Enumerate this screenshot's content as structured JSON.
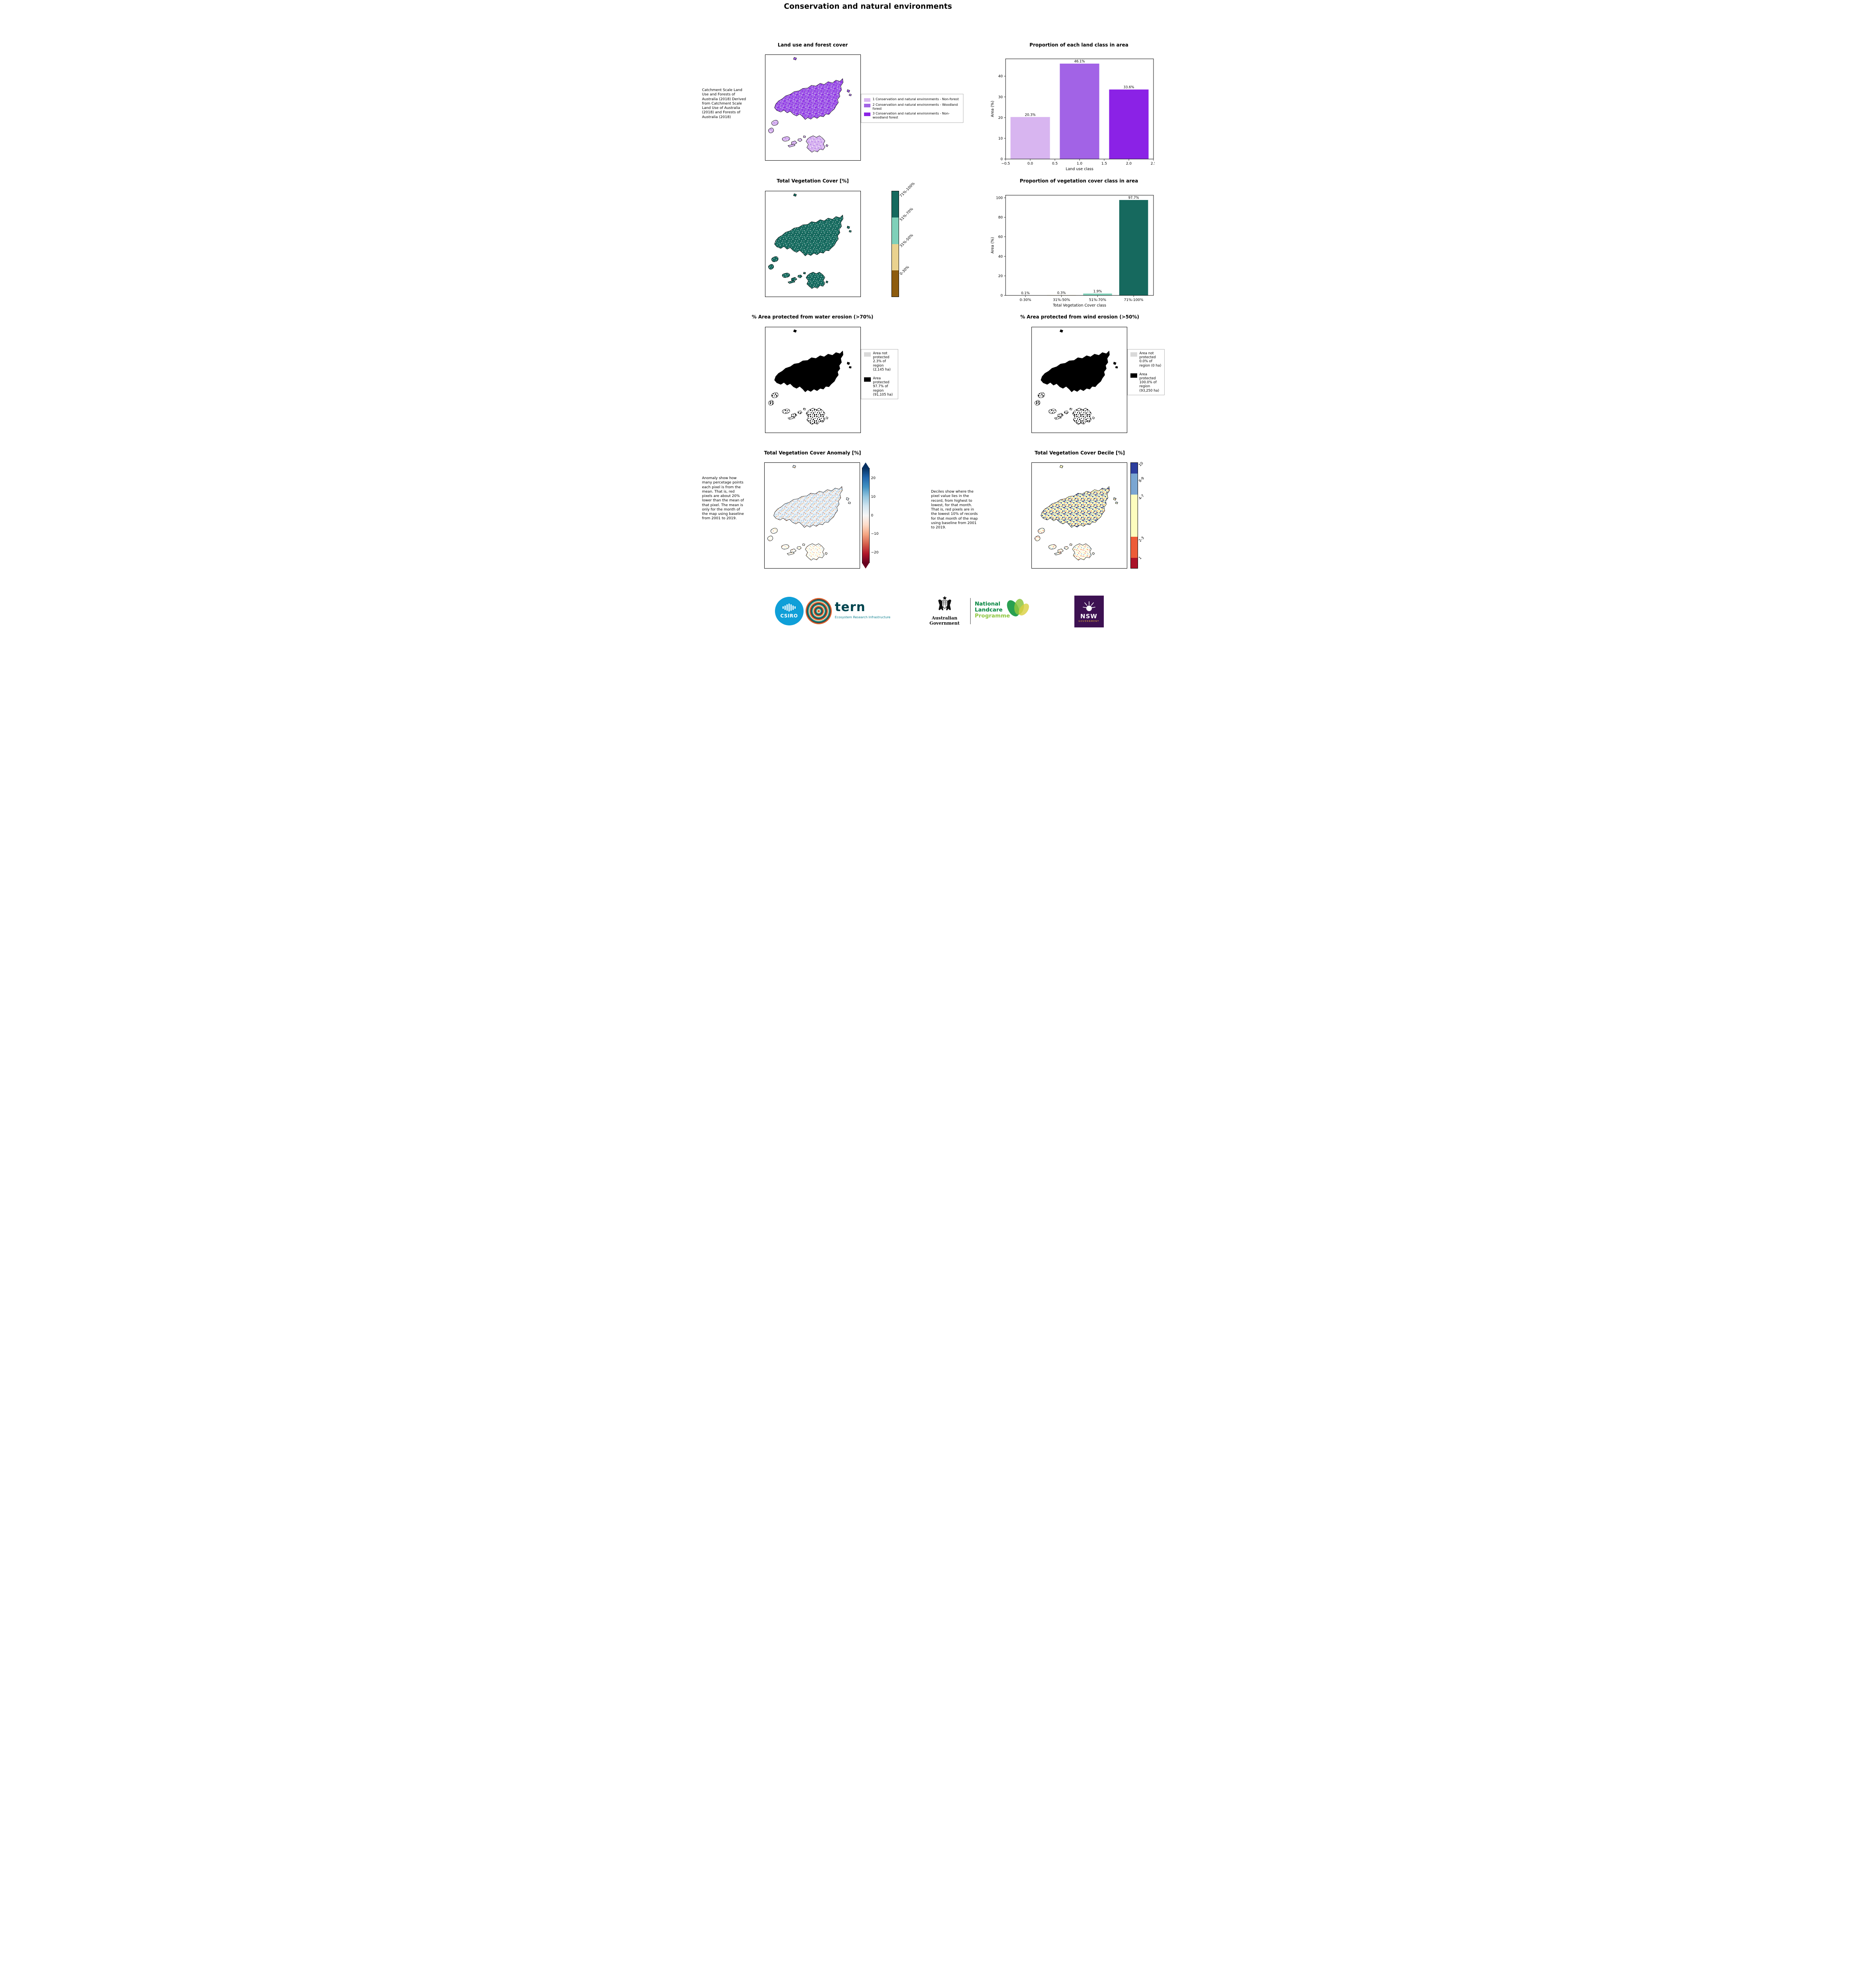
{
  "page": {
    "title": "Conservation and natural environments"
  },
  "landuse": {
    "map_title": "Land use and forest cover",
    "note": " Catchment Scale Land Use and Forests of Australia (2018) Derived from Catchment Scale Land Use of Australia (2018) and Forests of Australia (2018)",
    "legend": {
      "items": [
        {
          "label": "1 Conservation and natural environments - Non-forest",
          "color": "#d8b5f0"
        },
        {
          "label": "2 Conservation and natural environments - Woodland forest",
          "color": "#a263e6"
        },
        {
          "label": "3 Conservation and natural environments - Non-woodland forest",
          "color": "#8b22e6"
        }
      ]
    }
  },
  "vegcover": {
    "map_title": "Total Vegetation Cover [%]",
    "colorbar": {
      "segments": [
        {
          "label": "71%-100%",
          "color": "#16695e"
        },
        {
          "label": "51%-70%",
          "color": "#7fd0b9"
        },
        {
          "label": "31%-50%",
          "color": "#ead28f"
        },
        {
          "label": "0-30%",
          "color": "#8d5c0f"
        }
      ]
    }
  },
  "water_erosion": {
    "title": "% Area protected from water erosion (>70%)",
    "legend": [
      {
        "label": "Area not protected 2.3% of region (2,145 ha)",
        "color": "#d9d9d9"
      },
      {
        "label": "Area protected 97.7% of region (91,105 ha)",
        "color": "#000000"
      }
    ]
  },
  "wind_erosion": {
    "title": "% Area protected from wind erosion (>50%)",
    "legend": [
      {
        "label": "Area not protected 0.0% of region (0 ha)",
        "color": "#d9d9d9"
      },
      {
        "label": "Area protected 100.0% of region (93,250 ha)",
        "color": "#000000"
      }
    ]
  },
  "anomaly": {
    "title": "Total Vegetation Cover Anomaly [%]",
    "note": "Anomaly show how many percetage points each pixel is from the mean. That is, red pixels are about 20% lower than the mean of that pixel. The mean is only for the month of the map using baseline from 2001 to 2019.",
    "colorbar_ticks": [
      {
        "label": "20"
      },
      {
        "label": "10"
      },
      {
        "label": "0"
      },
      {
        "label": "−10"
      },
      {
        "label": "−20"
      }
    ]
  },
  "decile": {
    "title": "Total Vegetation Cover Decile [%]",
    "note": "Deciles show where the pixel value lies in the record, from highest to lowest, for that month. That is, red pixels are in the lowest 10% of records for that month of the map using baseline from 2001 to 2019.",
    "colorbar": {
      "segments": [
        {
          "label": "10",
          "color": "#2d3f9e"
        },
        {
          "label": "8-9",
          "color": "#7aa6d2"
        },
        {
          "label": "4-7",
          "color": "#fdfdbe"
        },
        {
          "label": "2-3",
          "color": "#ec5c38"
        },
        {
          "label": "1",
          "color": "#aa1328"
        }
      ]
    }
  },
  "chart_data": [
    {
      "type": "bar",
      "title": "Proportion of each land class in area",
      "xlabel": "Land use class",
      "ylabel": "Area (%)",
      "x": [
        0,
        1,
        2
      ],
      "values": [
        20.3,
        46.1,
        33.6
      ],
      "value_labels": [
        "20.3%",
        "46.1%",
        "33.6%"
      ],
      "colors": [
        "#d8b5f0",
        "#a263e6",
        "#8b22e6"
      ],
      "bar_width": 0.8,
      "xlim": [
        -0.5,
        2.5
      ],
      "ylim": [
        0,
        48.4
      ],
      "xticks": [
        -0.5,
        0.0,
        0.5,
        1.0,
        1.5,
        2.0,
        2.5
      ],
      "xtick_labels": [
        "−0.5",
        "0.0",
        "0.5",
        "1.0",
        "1.5",
        "2.0",
        "2.5"
      ],
      "yticks": [
        0,
        10,
        20,
        30,
        40
      ],
      "grid": false,
      "legend_position": "none"
    },
    {
      "type": "bar",
      "title": "Proportion of vegetation cover class in area",
      "xlabel": "Total Vegetation Cover class",
      "ylabel": "Area (%)",
      "categories": [
        "0-30%",
        "31%-50%",
        "51%-70%",
        "71%-100%"
      ],
      "values": [
        0.1,
        0.3,
        1.9,
        97.7
      ],
      "value_labels": [
        "0.1%",
        "0.3%",
        "1.9%",
        "97.7%"
      ],
      "colors": [
        "#8d5c0f",
        "#ead28f",
        "#7fd0b9",
        "#16695e"
      ],
      "bar_width": 0.8,
      "xlim": [
        -0.55,
        3.55
      ],
      "ylim": [
        0,
        102.6
      ],
      "yticks": [
        0,
        20,
        40,
        60,
        80,
        100
      ],
      "grid": false,
      "legend_position": "none"
    }
  ],
  "footer": {
    "csiro_label": "CSIRO",
    "tern_label": "tern",
    "tern_sub": "Ecosystem Research Infrastructure",
    "aus_gov": "Australian Government",
    "landcare_lines": [
      "National",
      "Landcare",
      "Programme"
    ],
    "nsw_label": "NSW",
    "nsw_sub": "GOVERNMENT"
  }
}
